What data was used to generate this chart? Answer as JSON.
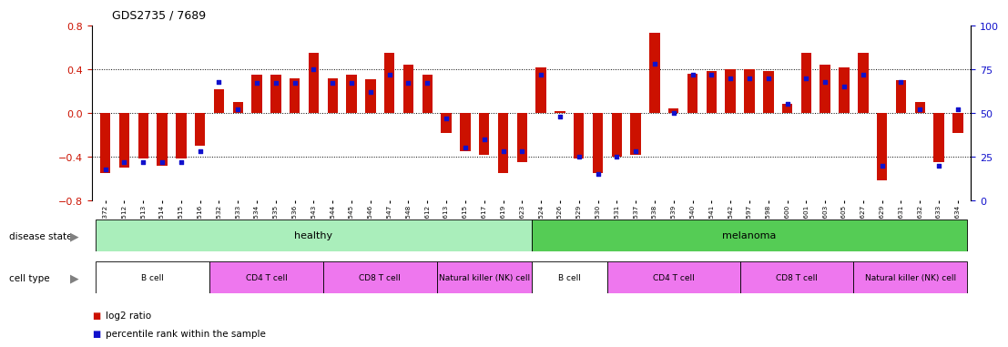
{
  "title": "GDS2735 / 7689",
  "samples": [
    "GSM158372",
    "GSM158512",
    "GSM158513",
    "GSM158514",
    "GSM158515",
    "GSM158516",
    "GSM158532",
    "GSM158533",
    "GSM158534",
    "GSM158535",
    "GSM158536",
    "GSM158543",
    "GSM158544",
    "GSM158545",
    "GSM158546",
    "GSM158547",
    "GSM158548",
    "GSM158612",
    "GSM158613",
    "GSM158615",
    "GSM158617",
    "GSM158619",
    "GSM158623",
    "GSM158524",
    "GSM158526",
    "GSM158529",
    "GSM158530",
    "GSM158531",
    "GSM158537",
    "GSM158538",
    "GSM158539",
    "GSM158540",
    "GSM158541",
    "GSM158542",
    "GSM158597",
    "GSM158598",
    "GSM158600",
    "GSM158601",
    "GSM158603",
    "GSM158605",
    "GSM158627",
    "GSM158629",
    "GSM158631",
    "GSM158632",
    "GSM158633",
    "GSM158634"
  ],
  "log2_ratio": [
    -0.55,
    -0.5,
    -0.42,
    -0.48,
    -0.42,
    -0.3,
    0.22,
    0.1,
    0.35,
    0.35,
    0.32,
    0.55,
    0.32,
    0.35,
    0.31,
    0.55,
    0.44,
    0.35,
    -0.18,
    -0.35,
    -0.38,
    -0.55,
    -0.45,
    0.42,
    0.02,
    -0.42,
    -0.55,
    -0.4,
    -0.38,
    0.73,
    0.04,
    0.36,
    0.38,
    0.4,
    0.4,
    0.38,
    0.08,
    0.55,
    0.44,
    0.42,
    0.55,
    -0.62,
    0.3,
    0.1,
    -0.45,
    -0.18
  ],
  "percentile": [
    18,
    22,
    22,
    22,
    22,
    28,
    68,
    52,
    67,
    67,
    67,
    75,
    67,
    67,
    62,
    72,
    67,
    67,
    47,
    30,
    35,
    28,
    28,
    72,
    48,
    25,
    15,
    25,
    28,
    78,
    50,
    72,
    72,
    70,
    70,
    70,
    55,
    70,
    68,
    65,
    72,
    20,
    68,
    52,
    20,
    52
  ],
  "cell_types": [
    {
      "label": "B cell",
      "start": 0,
      "end": 5,
      "color": "#ffffff"
    },
    {
      "label": "CD4 T cell",
      "start": 6,
      "end": 11,
      "color": "#ee77ee"
    },
    {
      "label": "CD8 T cell",
      "start": 12,
      "end": 17,
      "color": "#ee77ee"
    },
    {
      "label": "Natural killer (NK) cell",
      "start": 18,
      "end": 22,
      "color": "#ee77ee"
    },
    {
      "label": "B cell",
      "start": 23,
      "end": 26,
      "color": "#ffffff"
    },
    {
      "label": "CD4 T cell",
      "start": 27,
      "end": 33,
      "color": "#ee77ee"
    },
    {
      "label": "CD8 T cell",
      "start": 34,
      "end": 39,
      "color": "#ee77ee"
    },
    {
      "label": "Natural killer (NK) cell",
      "start": 40,
      "end": 45,
      "color": "#ee77ee"
    }
  ],
  "ylim": [
    -0.8,
    0.8
  ],
  "yticks_left": [
    -0.8,
    -0.4,
    0.0,
    0.4,
    0.8
  ],
  "yticks_right": [
    0,
    25,
    50,
    75,
    100
  ],
  "bar_color": "#cc1100",
  "dot_color": "#1111cc",
  "healthy_color": "#aaeebb",
  "melanoma_color": "#55cc55",
  "xtick_bg": "#cccccc",
  "plot_bg": "#ffffff"
}
